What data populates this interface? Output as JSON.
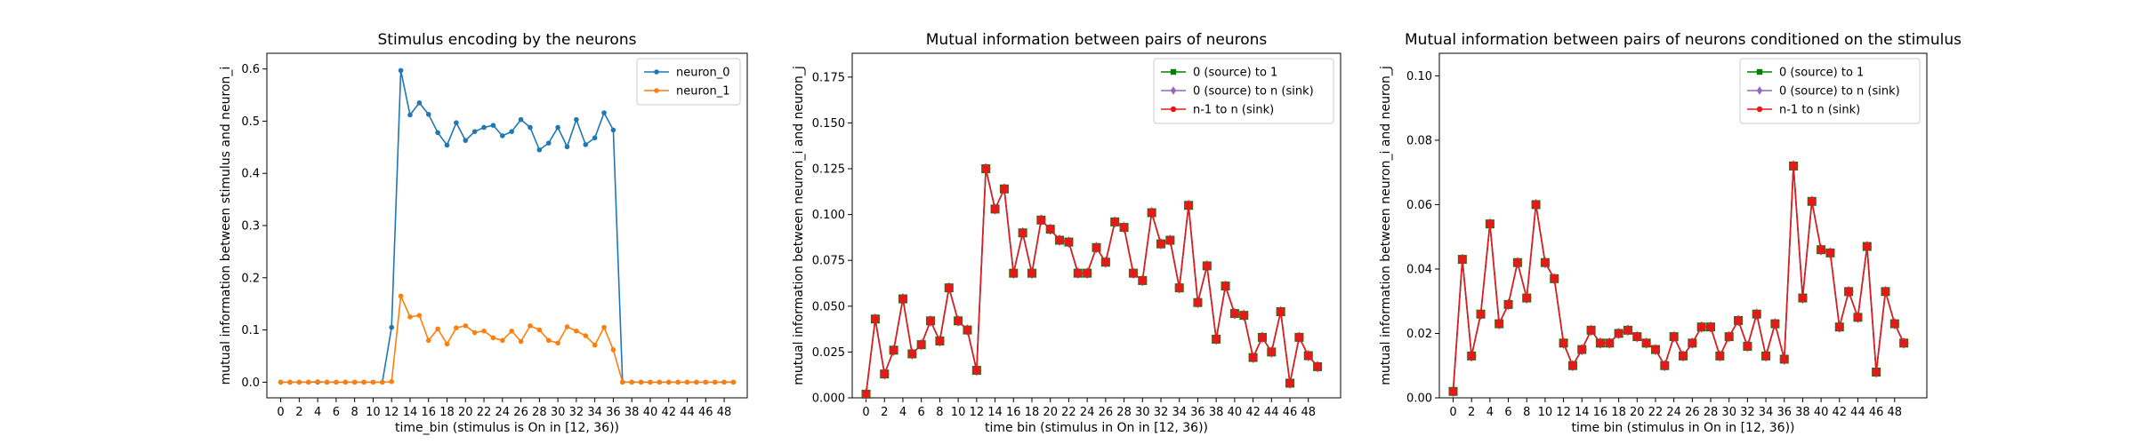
{
  "chart_data": [
    {
      "type": "line",
      "title": "Stimulus encoding by the neurons",
      "xlabel": "time_bin (stimulus is On in [12, 36))",
      "ylabel": "mutual information between stimulus and neuron_i",
      "xlim": [
        -1.5,
        50.5
      ],
      "ylim": [
        -0.03,
        0.63
      ],
      "xticks": [
        0,
        2,
        4,
        6,
        8,
        10,
        12,
        14,
        16,
        18,
        20,
        22,
        24,
        26,
        28,
        30,
        32,
        34,
        36,
        38,
        40,
        42,
        44,
        46,
        48
      ],
      "yticks": [
        0.0,
        0.1,
        0.2,
        0.3,
        0.4,
        0.5,
        0.6
      ],
      "ytick_labels": [
        "0.0",
        "0.1",
        "0.2",
        "0.3",
        "0.4",
        "0.5",
        "0.6"
      ],
      "legend_position": "top-right",
      "series": [
        {
          "name": "neuron_0",
          "color": "#1f77b4",
          "marker": "dot",
          "x": [
            0,
            1,
            2,
            3,
            4,
            5,
            6,
            7,
            8,
            9,
            10,
            11,
            12,
            13,
            14,
            15,
            16,
            17,
            18,
            19,
            20,
            21,
            22,
            23,
            24,
            25,
            26,
            27,
            28,
            29,
            30,
            31,
            32,
            33,
            34,
            35,
            36,
            37,
            38,
            39,
            40,
            41,
            42,
            43,
            44,
            45,
            46,
            47,
            48,
            49
          ],
          "values": [
            0.0,
            0.0,
            0.0,
            0.0,
            0.0,
            0.0,
            0.0,
            0.0,
            0.0,
            0.0,
            0.0,
            0.0,
            0.105,
            0.597,
            0.512,
            0.535,
            0.513,
            0.478,
            0.454,
            0.497,
            0.463,
            0.48,
            0.488,
            0.492,
            0.472,
            0.48,
            0.503,
            0.488,
            0.445,
            0.458,
            0.488,
            0.451,
            0.503,
            0.455,
            0.468,
            0.516,
            0.483,
            0.0,
            0.0,
            0.0,
            0.0,
            0.0,
            0.0,
            0.0,
            0.0,
            0.0,
            0.0,
            0.0,
            0.0,
            0.0
          ]
        },
        {
          "name": "neuron_1",
          "color": "#ff7f0e",
          "marker": "dot",
          "x": [
            0,
            1,
            2,
            3,
            4,
            5,
            6,
            7,
            8,
            9,
            10,
            11,
            12,
            13,
            14,
            15,
            16,
            17,
            18,
            19,
            20,
            21,
            22,
            23,
            24,
            25,
            26,
            27,
            28,
            29,
            30,
            31,
            32,
            33,
            34,
            35,
            36,
            37,
            38,
            39,
            40,
            41,
            42,
            43,
            44,
            45,
            46,
            47,
            48,
            49
          ],
          "values": [
            0.0,
            0.0,
            0.0,
            0.0,
            0.001,
            0.0,
            0.0,
            0.0,
            0.0,
            0.0,
            0.0,
            0.0,
            0.001,
            0.165,
            0.125,
            0.128,
            0.08,
            0.102,
            0.073,
            0.104,
            0.108,
            0.095,
            0.098,
            0.085,
            0.08,
            0.098,
            0.078,
            0.108,
            0.1,
            0.08,
            0.075,
            0.106,
            0.098,
            0.089,
            0.071,
            0.105,
            0.062,
            0.0,
            0.0,
            0.0,
            0.0,
            0.0,
            0.0,
            0.0,
            0.0,
            0.0,
            0.0,
            0.0,
            0.0,
            0.0
          ]
        }
      ]
    },
    {
      "type": "line",
      "title": "Mutual information between pairs of neurons",
      "xlabel": "time bin (stimulus in On in [12, 36))",
      "ylabel": "mutual information between neuron_i and neuron_j",
      "xlim": [
        -1.5,
        51.5
      ],
      "ylim": [
        0,
        0.188
      ],
      "xticks": [
        0,
        2,
        4,
        6,
        8,
        10,
        12,
        14,
        16,
        18,
        20,
        22,
        24,
        26,
        28,
        30,
        32,
        34,
        36,
        38,
        40,
        42,
        44,
        46,
        48
      ],
      "yticks": [
        0.0,
        0.025,
        0.05,
        0.075,
        0.1,
        0.125,
        0.15,
        0.175
      ],
      "ytick_labels": [
        "0.000",
        "0.025",
        "0.050",
        "0.075",
        "0.100",
        "0.125",
        "0.150",
        "0.175"
      ],
      "legend_position": "top-right",
      "series": [
        {
          "name": "0 (source) to 1",
          "color": "#008000",
          "marker": "square",
          "x": [
            0,
            1,
            2,
            3,
            4,
            5,
            6,
            7,
            8,
            9,
            10,
            11,
            12,
            13,
            14,
            15,
            16,
            17,
            18,
            19,
            20,
            21,
            22,
            23,
            24,
            25,
            26,
            27,
            28,
            29,
            30,
            31,
            32,
            33,
            34,
            35,
            36,
            37,
            38,
            39,
            40,
            41,
            42,
            43,
            44,
            45,
            46,
            47,
            48,
            49
          ],
          "values": [
            0.002,
            0.043,
            0.013,
            0.026,
            0.054,
            0.024,
            0.029,
            0.042,
            0.031,
            0.06,
            0.042,
            0.037,
            0.015,
            0.125,
            0.103,
            0.114,
            0.068,
            0.09,
            0.068,
            0.097,
            0.092,
            0.086,
            0.085,
            0.068,
            0.068,
            0.082,
            0.074,
            0.096,
            0.093,
            0.068,
            0.064,
            0.101,
            0.084,
            0.086,
            0.06,
            0.105,
            0.052,
            0.072,
            0.032,
            0.061,
            0.046,
            0.045,
            0.022,
            0.033,
            0.025,
            0.047,
            0.008,
            0.033,
            0.023,
            0.017
          ]
        },
        {
          "name": "0 (source) to n (sink)",
          "color": "#9467bd",
          "marker": "diamond",
          "x": [
            0,
            1,
            2,
            3,
            4,
            5,
            6,
            7,
            8,
            9,
            10,
            11,
            12,
            13,
            14,
            15,
            16,
            17,
            18,
            19,
            20,
            21,
            22,
            23,
            24,
            25,
            26,
            27,
            28,
            29,
            30,
            31,
            32,
            33,
            34,
            35,
            36,
            37,
            38,
            39,
            40,
            41,
            42,
            43,
            44,
            45,
            46,
            47,
            48,
            49
          ],
          "values": [
            0.002,
            0.043,
            0.013,
            0.026,
            0.054,
            0.024,
            0.029,
            0.042,
            0.031,
            0.06,
            0.042,
            0.037,
            0.015,
            0.125,
            0.103,
            0.114,
            0.068,
            0.09,
            0.068,
            0.097,
            0.092,
            0.086,
            0.085,
            0.068,
            0.068,
            0.082,
            0.074,
            0.096,
            0.093,
            0.068,
            0.064,
            0.101,
            0.084,
            0.086,
            0.06,
            0.105,
            0.052,
            0.072,
            0.032,
            0.061,
            0.046,
            0.045,
            0.022,
            0.033,
            0.025,
            0.047,
            0.008,
            0.033,
            0.023,
            0.017
          ]
        },
        {
          "name": "n-1 to n (sink)",
          "color": "#e31a1c",
          "marker": "circle",
          "x": [
            0,
            1,
            2,
            3,
            4,
            5,
            6,
            7,
            8,
            9,
            10,
            11,
            12,
            13,
            14,
            15,
            16,
            17,
            18,
            19,
            20,
            21,
            22,
            23,
            24,
            25,
            26,
            27,
            28,
            29,
            30,
            31,
            32,
            33,
            34,
            35,
            36,
            37,
            38,
            39,
            40,
            41,
            42,
            43,
            44,
            45,
            46,
            47,
            48,
            49
          ],
          "values": [
            0.002,
            0.043,
            0.013,
            0.026,
            0.054,
            0.024,
            0.029,
            0.042,
            0.031,
            0.06,
            0.042,
            0.037,
            0.015,
            0.125,
            0.103,
            0.114,
            0.068,
            0.09,
            0.068,
            0.097,
            0.092,
            0.086,
            0.085,
            0.068,
            0.068,
            0.082,
            0.074,
            0.096,
            0.093,
            0.068,
            0.064,
            0.101,
            0.084,
            0.086,
            0.06,
            0.105,
            0.052,
            0.072,
            0.032,
            0.061,
            0.046,
            0.045,
            0.022,
            0.033,
            0.025,
            0.047,
            0.008,
            0.033,
            0.023,
            0.017
          ]
        }
      ]
    },
    {
      "type": "line",
      "title": "Mutual information between pairs of neurons conditioned on the stimulus",
      "xlabel": "time bin (stimulus in On in [12, 36))",
      "ylabel": "mutual information between neuron_i and neuron_j",
      "xlim": [
        -1.5,
        51.5
      ],
      "ylim": [
        0,
        0.107
      ],
      "xticks": [
        0,
        2,
        4,
        6,
        8,
        10,
        12,
        14,
        16,
        18,
        20,
        22,
        24,
        26,
        28,
        30,
        32,
        34,
        36,
        38,
        40,
        42,
        44,
        46,
        48
      ],
      "yticks": [
        0.0,
        0.02,
        0.04,
        0.06,
        0.08,
        0.1
      ],
      "ytick_labels": [
        "0.00",
        "0.02",
        "0.04",
        "0.06",
        "0.08",
        "0.10"
      ],
      "legend_position": "top-right",
      "series": [
        {
          "name": "0 (source) to 1",
          "color": "#008000",
          "marker": "square",
          "x": [
            0,
            1,
            2,
            3,
            4,
            5,
            6,
            7,
            8,
            9,
            10,
            11,
            12,
            13,
            14,
            15,
            16,
            17,
            18,
            19,
            20,
            21,
            22,
            23,
            24,
            25,
            26,
            27,
            28,
            29,
            30,
            31,
            32,
            33,
            34,
            35,
            36,
            37,
            38,
            39,
            40,
            41,
            42,
            43,
            44,
            45,
            46,
            47,
            48,
            49
          ],
          "values": [
            0.002,
            0.043,
            0.013,
            0.026,
            0.054,
            0.023,
            0.029,
            0.042,
            0.031,
            0.06,
            0.042,
            0.037,
            0.017,
            0.01,
            0.015,
            0.021,
            0.017,
            0.017,
            0.02,
            0.021,
            0.019,
            0.017,
            0.015,
            0.01,
            0.019,
            0.013,
            0.017,
            0.022,
            0.022,
            0.013,
            0.019,
            0.024,
            0.016,
            0.026,
            0.013,
            0.023,
            0.012,
            0.072,
            0.031,
            0.061,
            0.046,
            0.045,
            0.022,
            0.033,
            0.025,
            0.047,
            0.008,
            0.033,
            0.023,
            0.017
          ]
        },
        {
          "name": "0 (source) to n (sink)",
          "color": "#9467bd",
          "marker": "diamond",
          "x": [
            0,
            1,
            2,
            3,
            4,
            5,
            6,
            7,
            8,
            9,
            10,
            11,
            12,
            13,
            14,
            15,
            16,
            17,
            18,
            19,
            20,
            21,
            22,
            23,
            24,
            25,
            26,
            27,
            28,
            29,
            30,
            31,
            32,
            33,
            34,
            35,
            36,
            37,
            38,
            39,
            40,
            41,
            42,
            43,
            44,
            45,
            46,
            47,
            48,
            49
          ],
          "values": [
            0.002,
            0.043,
            0.013,
            0.026,
            0.054,
            0.023,
            0.029,
            0.042,
            0.031,
            0.06,
            0.042,
            0.037,
            0.017,
            0.01,
            0.015,
            0.021,
            0.017,
            0.017,
            0.02,
            0.021,
            0.019,
            0.017,
            0.015,
            0.01,
            0.019,
            0.013,
            0.017,
            0.022,
            0.022,
            0.013,
            0.019,
            0.024,
            0.016,
            0.026,
            0.013,
            0.023,
            0.012,
            0.072,
            0.031,
            0.061,
            0.046,
            0.045,
            0.022,
            0.033,
            0.025,
            0.047,
            0.008,
            0.033,
            0.023,
            0.017
          ]
        },
        {
          "name": "n-1 to n (sink)",
          "color": "#e31a1c",
          "marker": "circle",
          "x": [
            0,
            1,
            2,
            3,
            4,
            5,
            6,
            7,
            8,
            9,
            10,
            11,
            12,
            13,
            14,
            15,
            16,
            17,
            18,
            19,
            20,
            21,
            22,
            23,
            24,
            25,
            26,
            27,
            28,
            29,
            30,
            31,
            32,
            33,
            34,
            35,
            36,
            37,
            38,
            39,
            40,
            41,
            42,
            43,
            44,
            45,
            46,
            47,
            48,
            49
          ],
          "values": [
            0.002,
            0.043,
            0.013,
            0.026,
            0.054,
            0.023,
            0.029,
            0.042,
            0.031,
            0.06,
            0.042,
            0.037,
            0.017,
            0.01,
            0.015,
            0.021,
            0.017,
            0.017,
            0.02,
            0.021,
            0.019,
            0.017,
            0.015,
            0.01,
            0.019,
            0.013,
            0.017,
            0.022,
            0.022,
            0.013,
            0.019,
            0.024,
            0.016,
            0.026,
            0.013,
            0.023,
            0.012,
            0.072,
            0.031,
            0.061,
            0.046,
            0.045,
            0.022,
            0.033,
            0.025,
            0.047,
            0.008,
            0.033,
            0.023,
            0.017
          ]
        }
      ]
    }
  ]
}
